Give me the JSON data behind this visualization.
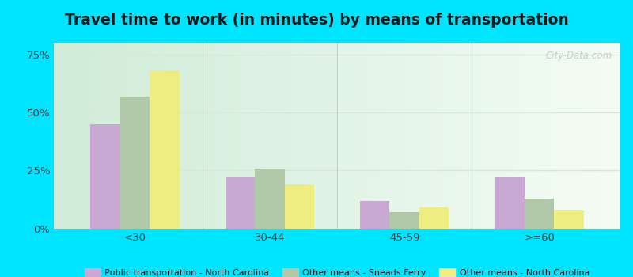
{
  "title": "Travel time to work (in minutes) by means of transportation",
  "categories": [
    "<30",
    "30-44",
    "45-59",
    ">=60"
  ],
  "series": {
    "Public transportation - North Carolina": [
      45,
      22,
      12,
      22
    ],
    "Other means - Sneads Ferry": [
      57,
      26,
      7,
      13
    ],
    "Other means - North Carolina": [
      68,
      19,
      9,
      8
    ]
  },
  "colors": {
    "Public transportation - North Carolina": "#c9a8d4",
    "Other means - Sneads Ferry": "#b0c8a8",
    "Other means - North Carolina": "#eded80"
  },
  "ylim": [
    0,
    80
  ],
  "yticks": [
    0,
    25,
    50,
    75
  ],
  "ytick_labels": [
    "0%",
    "25%",
    "50%",
    "75%"
  ],
  "bg_left_color": "#d0ecd8",
  "bg_right_color": "#f0f8f0",
  "outer_background": "#00e5ff",
  "title_fontsize": 13.5,
  "bar_width": 0.22,
  "watermark": "City-Data.com",
  "legend_fontsize": 8.0,
  "tick_fontsize": 9.5,
  "axis_label_color": "#444444",
  "grid_color": "#d8e8d8",
  "separator_color": "#c0d0c0"
}
